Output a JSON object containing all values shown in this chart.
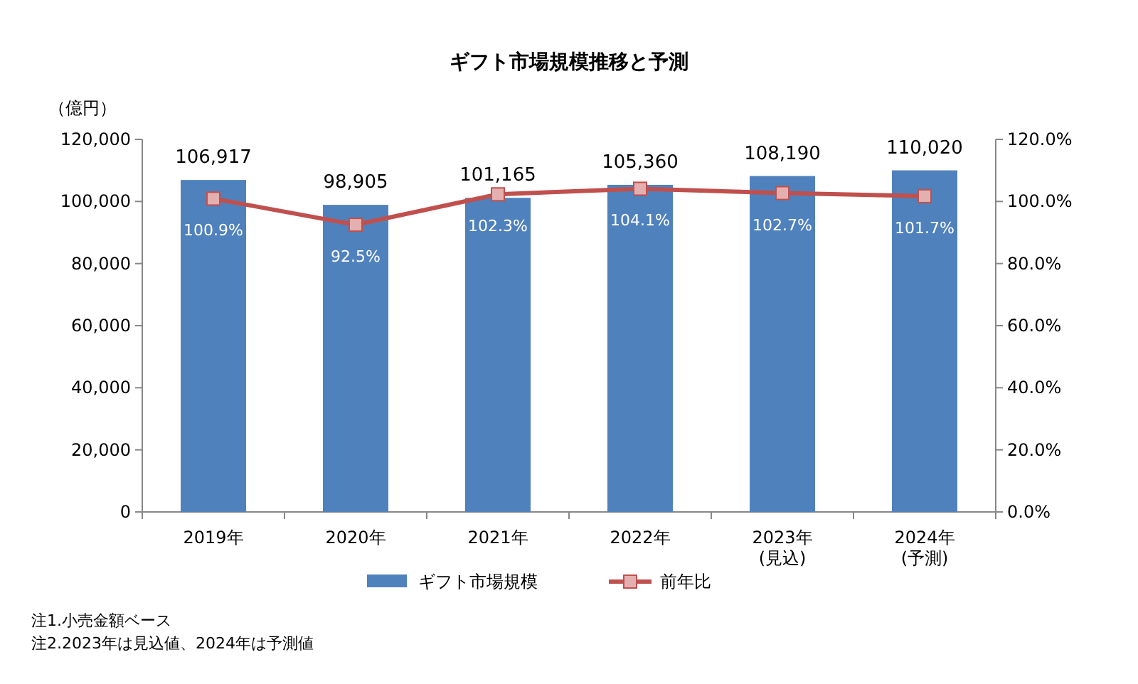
{
  "chart_data": {
    "type": "bar",
    "title": "ギフト市場規模推移と予測",
    "ylabel": "（億円）",
    "categories": [
      "2019年",
      "2020年",
      "2021年",
      "2022年",
      "2023年\n(見込)",
      "2024年\n(予測)"
    ],
    "series": [
      {
        "name": "ギフト市場規模",
        "color": "#4f81bd",
        "values": [
          106917,
          98905,
          101165,
          105360,
          108190,
          110020
        ],
        "value_labels": [
          "106,917",
          "98,905",
          "101,165",
          "105,360",
          "108,190",
          "110,020"
        ]
      },
      {
        "name": "前年比",
        "type": "line",
        "axis": "y2",
        "color": "#c0504d",
        "marker": "square",
        "values": [
          100.9,
          92.5,
          102.3,
          104.1,
          102.7,
          101.7
        ],
        "value_labels": [
          "100.9%",
          "92.5%",
          "102.3%",
          "104.1%",
          "102.7%",
          "101.7%"
        ]
      }
    ],
    "ylim": [
      0,
      120000
    ],
    "yticks": [
      0,
      {
        "value": 20000,
        "label": "20,000"
      },
      {
        "value": 40000,
        "label": "40,000"
      },
      {
        "value": 60000,
        "label": "60,000"
      },
      {
        "value": 80000,
        "label": "80,000"
      },
      {
        "value": 100000,
        "label": "100,000"
      },
      {
        "value": 120000,
        "label": "120,000"
      }
    ],
    "y2lim": [
      0,
      120
    ],
    "y2ticks": [
      {
        "value": 0,
        "label": "0.0%"
      },
      {
        "value": 20,
        "label": "20.0%"
      },
      {
        "value": 40,
        "label": "40.0%"
      },
      {
        "value": 60,
        "label": "60.0%"
      },
      {
        "value": 80,
        "label": "80.0%"
      },
      {
        "value": 100,
        "label": "100.0%"
      },
      {
        "value": 120,
        "label": "120.0%"
      }
    ],
    "legend": "bottom",
    "annotations": [
      "注1.小売金額ベース",
      "注2.2023年は見込値、2024年は予測値"
    ]
  }
}
